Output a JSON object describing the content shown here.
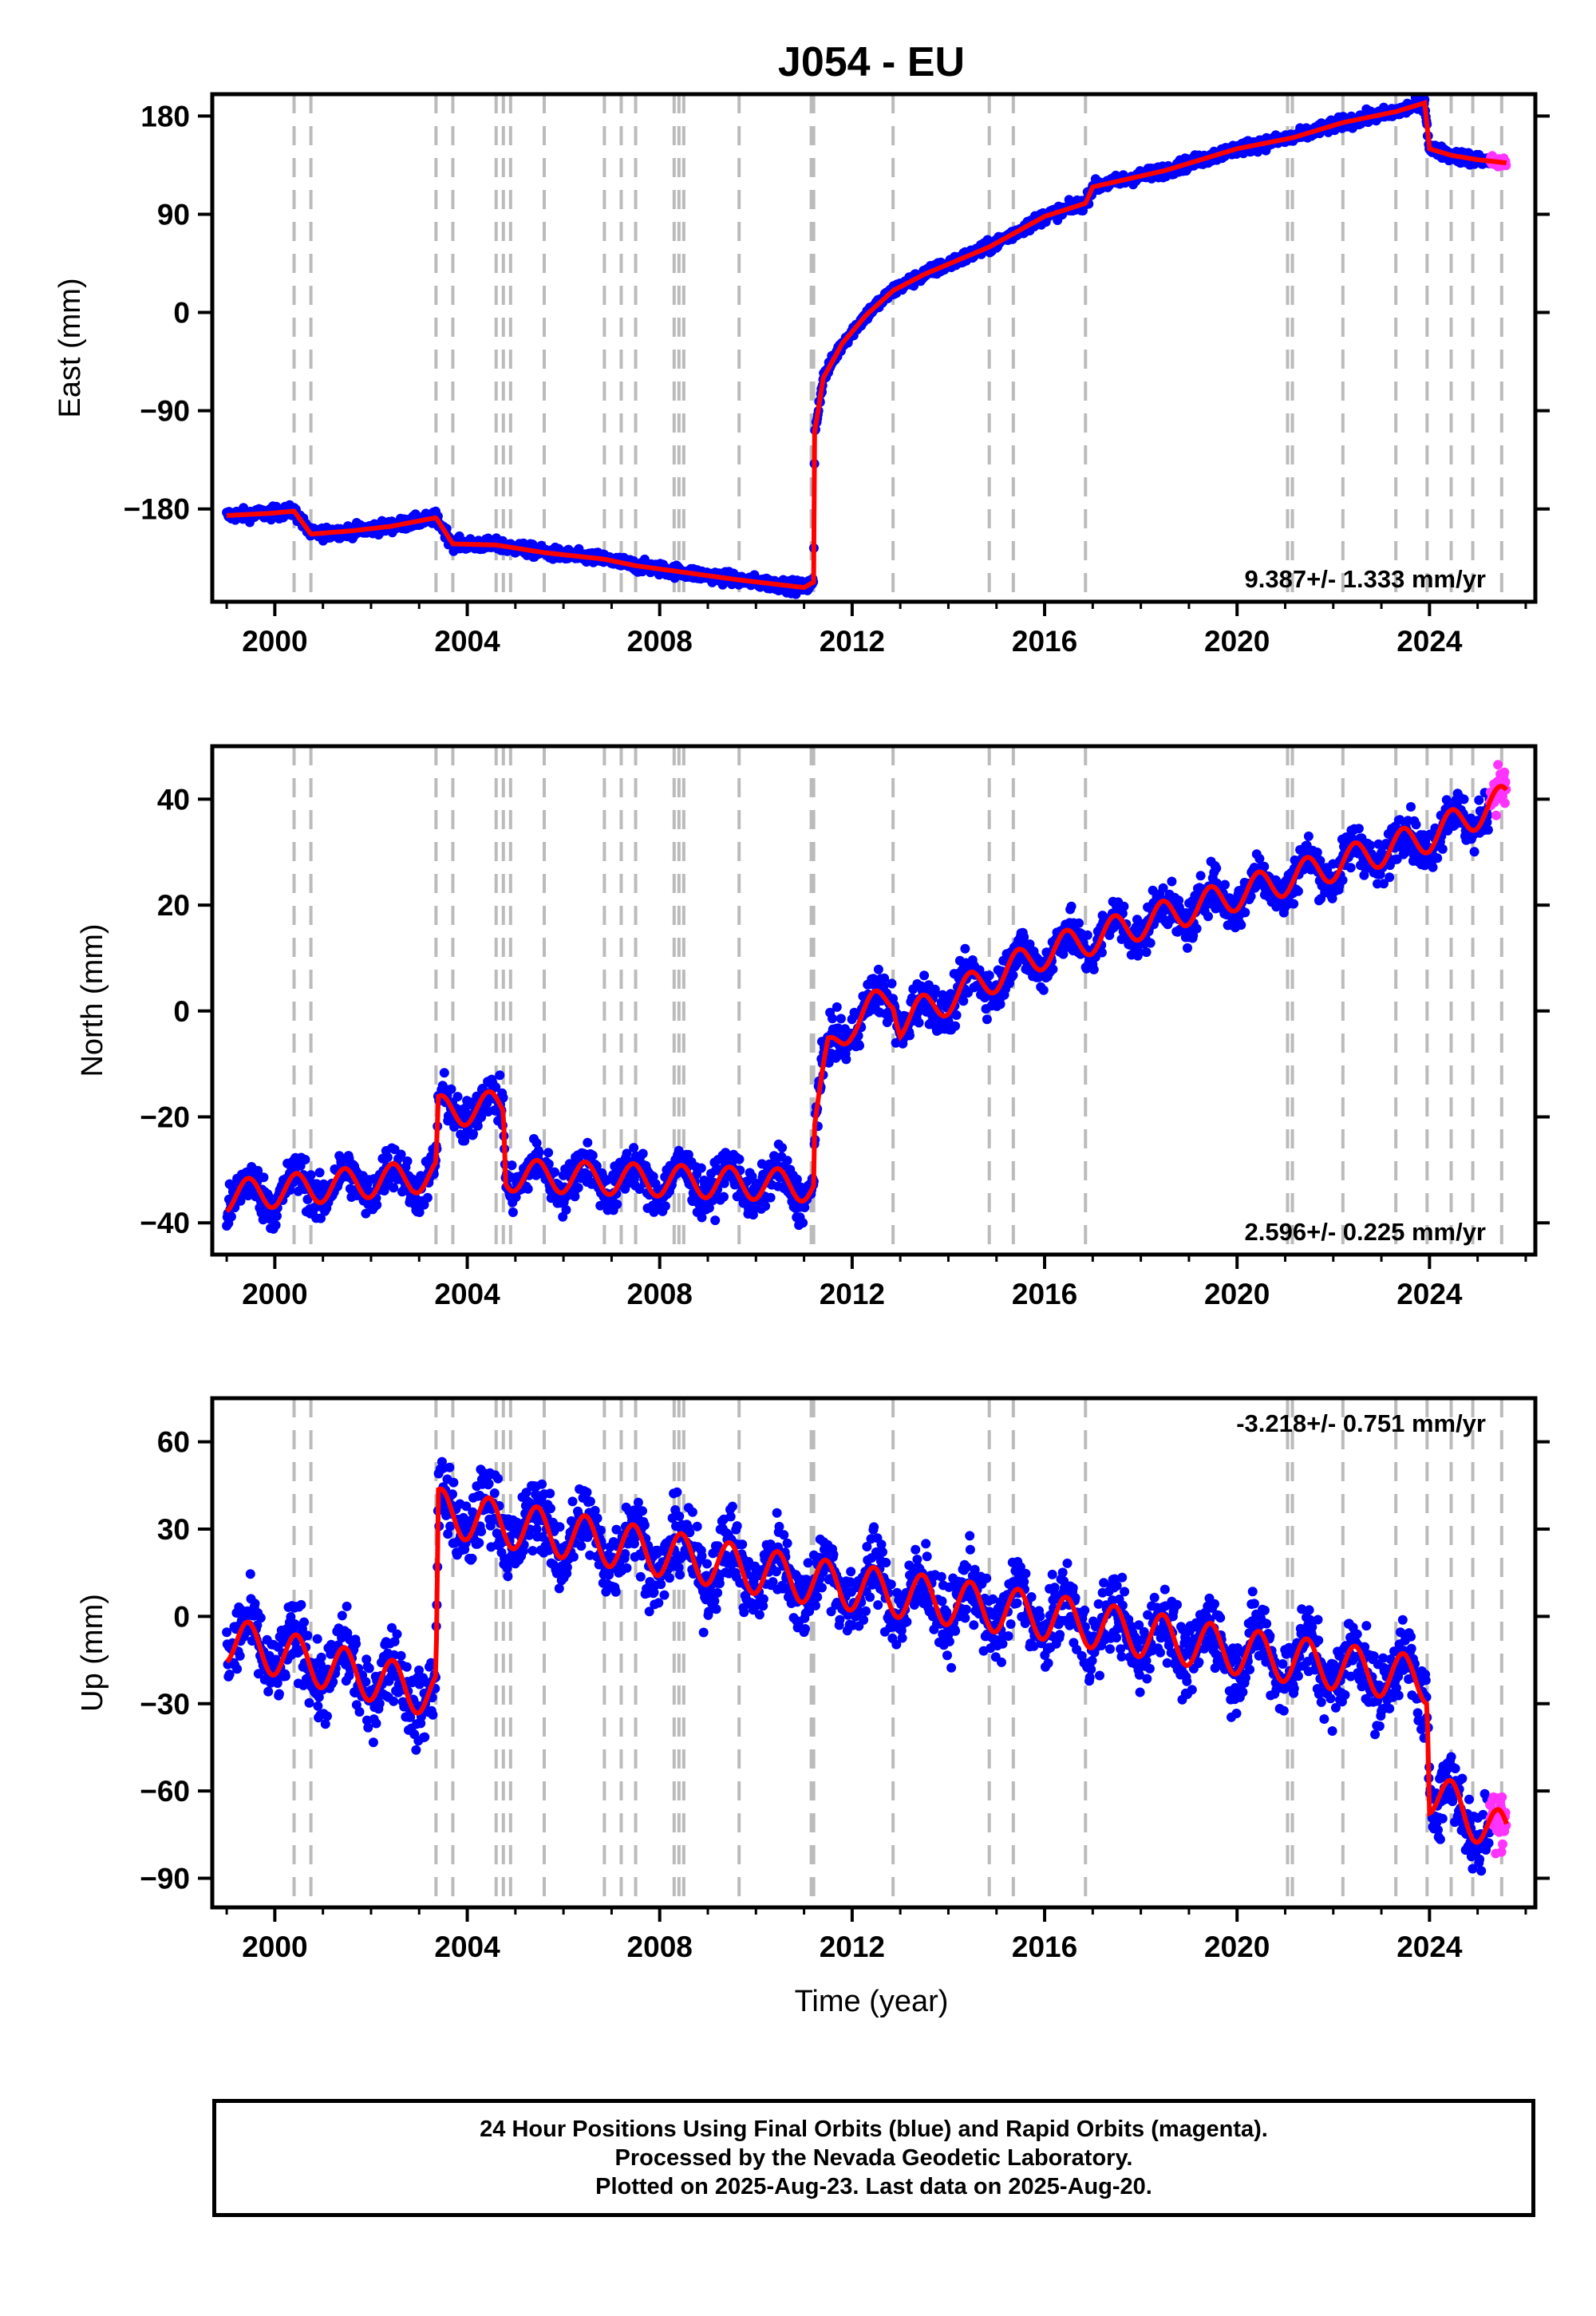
{
  "chart_data": {
    "title": "J054 - EU",
    "xlabel": "Time (year)",
    "xlim": [
      1998.7,
      2026.2
    ],
    "x_ticks": [
      2000,
      2004,
      2008,
      2012,
      2016,
      2020,
      2024
    ],
    "offset_lines": [
      2000.4,
      2000.75,
      2003.35,
      2003.7,
      2004.6,
      2004.75,
      2004.9,
      2005.6,
      2006.85,
      2007.2,
      2007.5,
      2008.3,
      2008.4,
      2008.5,
      2009.65,
      2011.15,
      2011.2,
      2012.85,
      2014.85,
      2015.35,
      2016.85,
      2021.05,
      2021.15,
      2022.2,
      2023.3,
      2023.95,
      2024.45,
      2024.9,
      2025.5
    ],
    "colors": {
      "final_orbits": "#0000ff",
      "rapid_orbits": "#ff33ff",
      "model": "#ff0000",
      "offset_lines": "#bbbbbb"
    },
    "panels": [
      {
        "type": "scatter",
        "ylabel": "East (mm)",
        "ylim": [
          -265,
          200
        ],
        "y_ticks": [
          180,
          90,
          0,
          -90,
          -180
        ],
        "y_tick_labels": [
          "180",
          "90",
          "0",
          "−90",
          "−180"
        ],
        "rate": "9.387+/- 1.333 mm/yr",
        "rate_position": "bottom-right",
        "model_series": [
          {
            "x": 1999.0,
            "y": -186
          },
          {
            "x": 1999.9,
            "y": -184
          },
          {
            "x": 2000.4,
            "y": -182
          },
          {
            "x": 2000.75,
            "y": -203
          },
          {
            "x": 2001.6,
            "y": -200
          },
          {
            "x": 2002.4,
            "y": -196
          },
          {
            "x": 2003.35,
            "y": -188
          },
          {
            "x": 2003.7,
            "y": -212
          },
          {
            "x": 2004.6,
            "y": -213
          },
          {
            "x": 2005.6,
            "y": -220
          },
          {
            "x": 2006.85,
            "y": -226
          },
          {
            "x": 2007.5,
            "y": -232
          },
          {
            "x": 2008.5,
            "y": -238
          },
          {
            "x": 2009.65,
            "y": -245
          },
          {
            "x": 2011.0,
            "y": -252
          },
          {
            "x": 2011.2,
            "y": -247
          },
          {
            "x": 2011.22,
            "y": -110
          },
          {
            "x": 2011.4,
            "y": -60
          },
          {
            "x": 2011.8,
            "y": -28
          },
          {
            "x": 2012.3,
            "y": -2
          },
          {
            "x": 2012.85,
            "y": 20
          },
          {
            "x": 2013.5,
            "y": 35
          },
          {
            "x": 2014.85,
            "y": 60
          },
          {
            "x": 2016.0,
            "y": 88
          },
          {
            "x": 2016.85,
            "y": 100
          },
          {
            "x": 2017.0,
            "y": 115
          },
          {
            "x": 2018.5,
            "y": 130
          },
          {
            "x": 2020.0,
            "y": 150
          },
          {
            "x": 2021.15,
            "y": 160
          },
          {
            "x": 2022.2,
            "y": 174
          },
          {
            "x": 2023.3,
            "y": 184
          },
          {
            "x": 2023.9,
            "y": 192
          },
          {
            "x": 2024.0,
            "y": 150
          },
          {
            "x": 2024.45,
            "y": 144
          },
          {
            "x": 2025.0,
            "y": 140
          },
          {
            "x": 2025.6,
            "y": 137
          }
        ],
        "scatter_amplitude": 4
      },
      {
        "type": "scatter",
        "ylabel": "North (mm)",
        "ylim": [
          -46,
          50
        ],
        "y_ticks": [
          40,
          20,
          0,
          -20,
          -40
        ],
        "y_tick_labels": [
          "40",
          "20",
          "0",
          "−20",
          "−40"
        ],
        "rate": "2.596+/- 0.225 mm/yr",
        "rate_position": "bottom-right",
        "model_series": [
          {
            "x": 1999.0,
            "y": -35
          },
          {
            "x": 2003.35,
            "y": -31
          },
          {
            "x": 2003.4,
            "y": -19
          },
          {
            "x": 2004.75,
            "y": -18
          },
          {
            "x": 2004.8,
            "y": -31
          },
          {
            "x": 2011.2,
            "y": -33
          },
          {
            "x": 2011.22,
            "y": -22
          },
          {
            "x": 2011.5,
            "y": -8
          },
          {
            "x": 2012.0,
            "y": -2
          },
          {
            "x": 2012.85,
            "y": 3
          },
          {
            "x": 2013.0,
            "y": -2
          },
          {
            "x": 2016.0,
            "y": 11
          },
          {
            "x": 2020.0,
            "y": 22
          },
          {
            "x": 2024.0,
            "y": 33
          },
          {
            "x": 2025.6,
            "y": 40
          }
        ],
        "seasonal_amplitude": 3,
        "scatter_amplitude": 3
      },
      {
        "type": "scatter",
        "ylabel": "Up (mm)",
        "ylim": [
          -100,
          75
        ],
        "y_ticks": [
          60,
          30,
          0,
          -30,
          -60,
          -90
        ],
        "y_tick_labels": [
          "60",
          "30",
          "0",
          "−30",
          "−60",
          "−90"
        ],
        "rate": "-3.218+/- 0.751 mm/yr",
        "rate_position": "top-right",
        "model_series": [
          {
            "x": 1999.0,
            "y": -8
          },
          {
            "x": 2003.35,
            "y": -27
          },
          {
            "x": 2003.4,
            "y": 36
          },
          {
            "x": 2011.2,
            "y": 12
          },
          {
            "x": 2016.0,
            "y": 0
          },
          {
            "x": 2020.0,
            "y": -12
          },
          {
            "x": 2023.95,
            "y": -22
          },
          {
            "x": 2024.0,
            "y": -60
          },
          {
            "x": 2025.6,
            "y": -76
          }
        ],
        "seasonal_amplitude": 8,
        "scatter_amplitude": 9
      }
    ]
  },
  "footer": {
    "line1": "24 Hour Positions Using Final Orbits (blue) and Rapid Orbits (magenta).",
    "line2": "Processed by the Nevada Geodetic Laboratory.",
    "line3": "Plotted on 2025-Aug-23. Last data on 2025-Aug-20."
  }
}
